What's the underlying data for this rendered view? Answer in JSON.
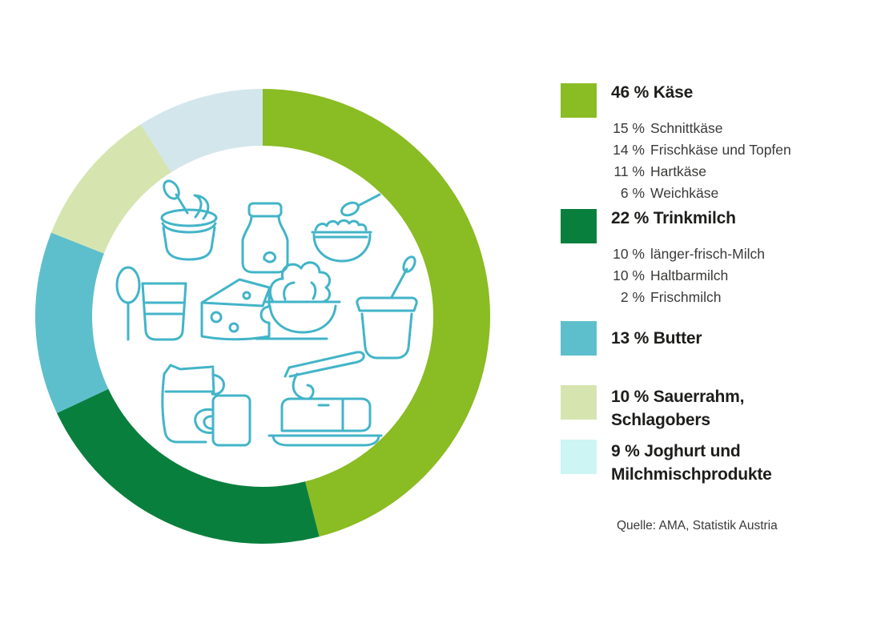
{
  "page": {
    "background": "#ffffff"
  },
  "chart_data": {
    "type": "donut",
    "unit": "%",
    "start_angle_deg": 0,
    "direction": "clockwise",
    "legend_position": "right",
    "slices": [
      {
        "label": "Käse",
        "value": 46,
        "color": "#8ABC23"
      },
      {
        "label": "Trinkmilch",
        "value": 22,
        "color": "#097F3D"
      },
      {
        "label": "Butter",
        "value": 13,
        "color": "#5EBFCC"
      },
      {
        "label": "Sauerrahm, Schlagobers",
        "value": 10,
        "color": "#D6E5B0"
      },
      {
        "label": "Joghurt und Milchmischprodukte",
        "value": 9,
        "color": "#D3E6EC"
      }
    ],
    "breakdowns": {
      "Käse": [
        {
          "value": 15,
          "label": "Schnittkäse"
        },
        {
          "value": 14,
          "label": "Frischkäse und Topfen"
        },
        {
          "value": 11,
          "label": "Hartkäse"
        },
        {
          "value": 6,
          "label": "Weichkäse"
        }
      ],
      "Trinkmilch": [
        {
          "value": 10,
          "label": "länger-frisch-Milch"
        },
        {
          "value": 10,
          "label": "Haltbarmilch"
        },
        {
          "value": 2,
          "label": "Frischmilch"
        }
      ]
    },
    "center_icons": [
      "cream-tub",
      "milk-bottle",
      "cottage-cheese-bowl",
      "spoon",
      "glass",
      "cheese-wedge",
      "whipped-cream-bowl",
      "yogurt-cup",
      "milk-jug",
      "mug",
      "butter-dish"
    ],
    "icon_stroke_color": "#42B4C8"
  },
  "legend": {
    "entries": [
      {
        "swatch_color": "#8ABC23",
        "title_lines": [
          "46 % Käse"
        ],
        "sub_items": [
          {
            "value": "15 %",
            "label": "Schnittkäse"
          },
          {
            "value": "14 %",
            "label": "Frischkäse und Topfen"
          },
          {
            "value": "11 %",
            "label": "Hartkäse"
          },
          {
            "value": "6 %",
            "label": "Weichkäse"
          }
        ]
      },
      {
        "swatch_color": "#097F3D",
        "title_lines": [
          "22 % Trinkmilch"
        ],
        "sub_items": [
          {
            "value": "10 %",
            "label": "länger-frisch-Milch"
          },
          {
            "value": "10 %",
            "label": "Haltbarmilch"
          },
          {
            "value": "2 %",
            "label": "Frischmilch"
          }
        ]
      },
      {
        "swatch_color": "#5EBFCC",
        "title_lines": [
          "13 % Butter"
        ],
        "sub_items": []
      },
      {
        "swatch_color": "#D6E5B0",
        "title_lines": [
          "10 % Sauerrahm,",
          "Schlagobers"
        ],
        "sub_items": []
      },
      {
        "swatch_color": "#CDF5F3",
        "title_lines": [
          "9 % Joghurt und",
          "Milchmischprodukte"
        ],
        "sub_items": []
      }
    ],
    "source": "Quelle: AMA, Statistik Austria"
  }
}
